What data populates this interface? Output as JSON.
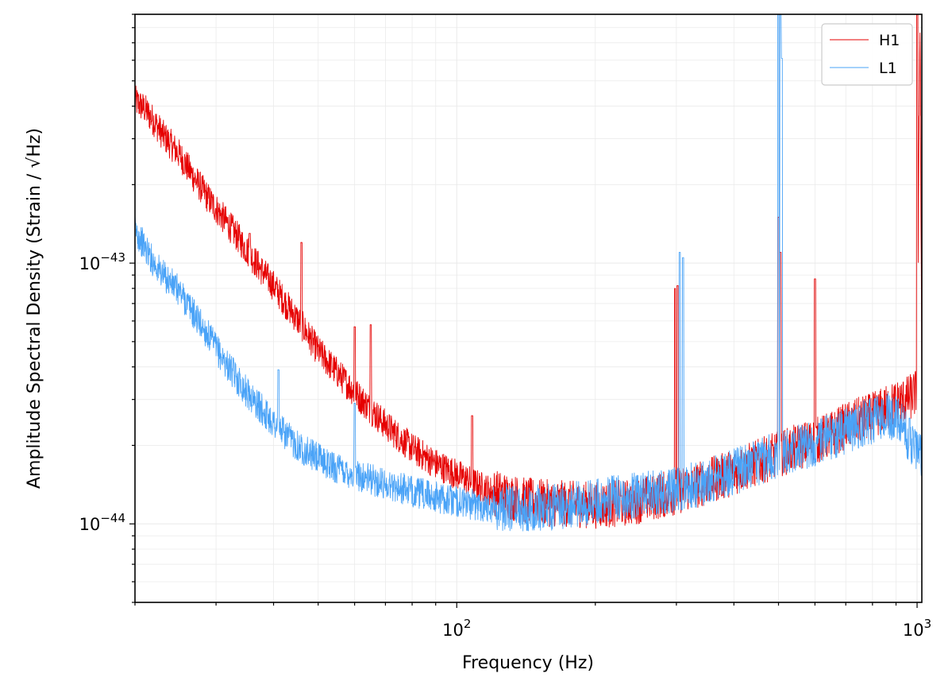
{
  "chart_data": {
    "type": "line",
    "xlabel": "Frequency (Hz)",
    "ylabel": "Amplitude Spectral Density (Strain / √Hz)",
    "xscale": "log",
    "yscale": "log",
    "xlim": [
      20,
      1024
    ],
    "ylim": [
      5e-45,
      9e-43
    ],
    "grid": true,
    "legend_position": "top-right",
    "x_major_ticks": [
      {
        "value": 100,
        "base": "10",
        "exp": "2"
      },
      {
        "value": 1000,
        "base": "10",
        "exp": "3"
      }
    ],
    "y_major_ticks": [
      {
        "value": 1e-44,
        "base": "10",
        "exp": "−44"
      },
      {
        "value": 1e-43,
        "base": "10",
        "exp": "−43"
      }
    ],
    "series": [
      {
        "name": "H1",
        "color": "#e60000",
        "x": [
          20,
          21,
          22,
          23,
          25,
          27,
          29,
          31,
          33,
          35,
          37,
          40,
          43,
          46,
          50,
          55,
          60,
          65,
          70,
          75,
          80,
          90,
          100,
          110,
          120,
          140,
          160,
          180,
          200,
          230,
          260,
          300,
          350,
          400,
          450,
          500,
          550,
          600,
          650,
          700,
          750,
          800,
          850,
          900,
          950,
          1000,
          1015,
          1024
        ],
        "y": [
          4.2e-43,
          3.9e-43,
          3.5e-43,
          3.1e-43,
          2.6e-43,
          2.1e-43,
          1.75e-43,
          1.5e-43,
          1.3e-43,
          1.12e-43,
          9.8e-44,
          8.2e-44,
          6.8e-44,
          5.8e-44,
          4.6e-44,
          3.8e-44,
          3.2e-44,
          2.75e-44,
          2.4e-44,
          2.15e-44,
          1.95e-44,
          1.7e-44,
          1.55e-44,
          1.42e-44,
          1.32e-44,
          1.23e-44,
          1.2e-44,
          1.19e-44,
          1.18e-44,
          1.2e-44,
          1.25e-44,
          1.33e-44,
          1.45e-44,
          1.58e-44,
          1.72e-44,
          1.85e-44,
          1.97e-44,
          2.08e-44,
          2.2e-44,
          2.38e-44,
          2.5e-44,
          2.6e-44,
          2.75e-44,
          2.9e-44,
          3e-44,
          3.2e-44,
          9e-43,
          3.2e-44
        ],
        "spikes": [
          [
            35.5,
            1.3e-43
          ],
          [
            46,
            1.2e-43
          ],
          [
            60,
            5.7e-44
          ],
          [
            65,
            5.8e-44
          ],
          [
            108,
            2.6e-44
          ],
          [
            298,
            8e-44
          ],
          [
            302,
            8.2e-44
          ],
          [
            500,
            1.5e-43
          ],
          [
            505,
            1.1e-43
          ],
          [
            600,
            8.7e-44
          ],
          [
            1001,
            9e-43
          ]
        ]
      },
      {
        "name": "L1",
        "color": "#4aa3f7",
        "x": [
          20,
          21,
          22,
          23,
          25,
          27,
          29,
          31,
          33,
          35,
          37,
          40,
          43,
          46,
          50,
          55,
          60,
          65,
          70,
          75,
          80,
          90,
          100,
          110,
          120,
          140,
          160,
          180,
          200,
          230,
          260,
          300,
          350,
          400,
          450,
          500,
          550,
          600,
          650,
          700,
          750,
          800,
          850,
          900,
          950,
          1000,
          1024
        ],
        "y": [
          1.35e-43,
          1.15e-43,
          1e-43,
          9e-44,
          7.8e-44,
          6.3e-44,
          5.2e-44,
          4.3e-44,
          3.7e-44,
          3.2e-44,
          2.85e-44,
          2.45e-44,
          2.15e-44,
          1.95e-44,
          1.78e-44,
          1.63e-44,
          1.55e-44,
          1.48e-44,
          1.42e-44,
          1.38e-44,
          1.33e-44,
          1.27e-44,
          1.22e-44,
          1.18e-44,
          1.16e-44,
          1.15e-44,
          1.16e-44,
          1.18e-44,
          1.22e-44,
          1.27e-44,
          1.3e-44,
          1.36e-44,
          1.45e-44,
          1.58e-44,
          1.72e-44,
          1.85e-44,
          1.95e-44,
          2.05e-44,
          2.15e-44,
          2.28e-44,
          2.38e-44,
          2.48e-44,
          2.6e-44,
          2.55e-44,
          2.2e-44,
          1.9e-44,
          1.8e-44
        ],
        "spikes": [
          [
            41,
            3.9e-44
          ],
          [
            60,
            2.9e-44
          ],
          [
            305,
            1.1e-43
          ],
          [
            310,
            1.05e-43
          ],
          [
            500,
            9e-43
          ],
          [
            505,
            9e-43
          ],
          [
            508,
            6.1e-43
          ],
          [
            750,
            2.8e-44
          ]
        ]
      }
    ]
  }
}
